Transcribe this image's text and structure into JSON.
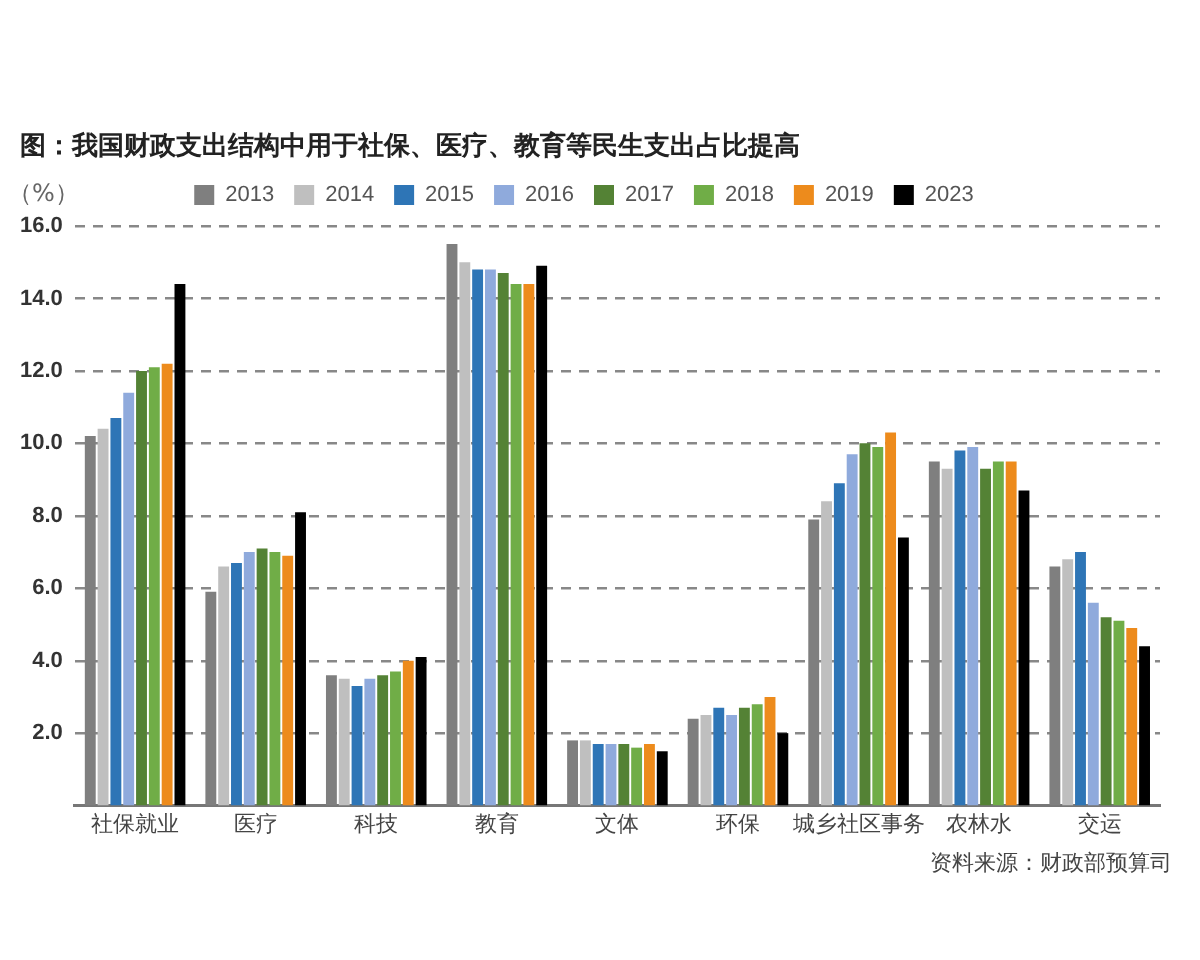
{
  "chart_data": {
    "type": "bar",
    "title": "图：我国财政支出结构中用于社保、医疗、教育等民生支出占比提高",
    "ylabel": "（%）",
    "categories": [
      "社保就业",
      "医疗",
      "科技",
      "教育",
      "文体",
      "环保",
      "城乡社区事务",
      "农林水",
      "交运"
    ],
    "series": [
      {
        "name": "2013",
        "color": "#7f7f7f",
        "values": [
          10.2,
          5.9,
          3.6,
          15.5,
          1.8,
          2.4,
          7.9,
          9.5,
          6.6
        ]
      },
      {
        "name": "2014",
        "color": "#bfbfbf",
        "values": [
          10.4,
          6.6,
          3.5,
          15.0,
          1.8,
          2.5,
          8.4,
          9.3,
          6.8
        ]
      },
      {
        "name": "2015",
        "color": "#2e75b6",
        "values": [
          10.7,
          6.7,
          3.3,
          14.8,
          1.7,
          2.7,
          8.9,
          9.8,
          7.0
        ]
      },
      {
        "name": "2016",
        "color": "#8faadc",
        "values": [
          11.4,
          7.0,
          3.5,
          14.8,
          1.7,
          2.5,
          9.7,
          9.9,
          5.6
        ]
      },
      {
        "name": "2017",
        "color": "#548235",
        "values": [
          12.0,
          7.1,
          3.6,
          14.7,
          1.7,
          2.7,
          10.0,
          9.3,
          5.2
        ]
      },
      {
        "name": "2018",
        "color": "#70ad47",
        "values": [
          12.1,
          7.0,
          3.7,
          14.4,
          1.6,
          2.8,
          9.9,
          9.5,
          5.1
        ]
      },
      {
        "name": "2019",
        "color": "#ed8b1c",
        "values": [
          12.2,
          6.9,
          4.0,
          14.4,
          1.7,
          3.0,
          10.3,
          9.5,
          4.9
        ]
      },
      {
        "name": "2023",
        "color": "#000000",
        "values": [
          14.4,
          8.1,
          4.1,
          14.9,
          1.5,
          2.0,
          7.4,
          8.7,
          4.4
        ]
      }
    ],
    "ylim": [
      0,
      16
    ],
    "yticks": [
      {
        "value": 2,
        "label": "2.0"
      },
      {
        "value": 4,
        "label": "4.0"
      },
      {
        "value": 6,
        "label": "6.0"
      },
      {
        "value": 8,
        "label": "8.0"
      },
      {
        "value": 10,
        "label": "10.0"
      },
      {
        "value": 12,
        "label": "12.0"
      },
      {
        "value": 14,
        "label": "14.0"
      },
      {
        "value": 16,
        "label": "16.0"
      }
    ],
    "grid": "y",
    "legend": "top",
    "annotations": [
      "资料来源：财政部预算司"
    ]
  }
}
